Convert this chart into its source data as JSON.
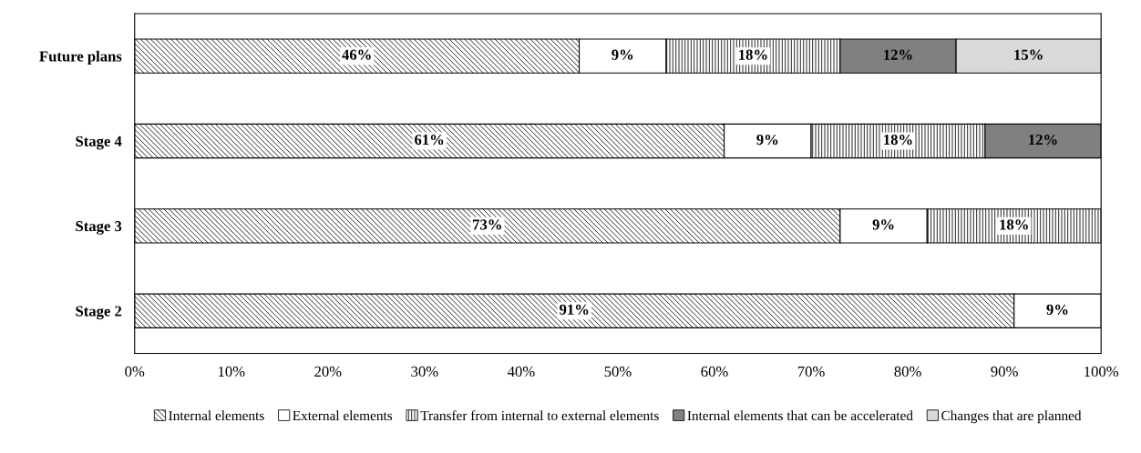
{
  "chart_data": {
    "type": "bar",
    "orientation": "horizontal",
    "stacked": true,
    "categories": [
      "Future plans",
      "Stage 4",
      "Stage 3",
      "Stage 2"
    ],
    "series": [
      {
        "name": "Internal elements",
        "color": "#000000",
        "values": [
          46,
          61,
          73,
          91
        ],
        "value_labels": [
          "46%",
          "61%",
          "73%",
          "91%"
        ]
      },
      {
        "name": "External elements",
        "color": "#ffffff",
        "values": [
          9,
          9,
          9,
          9
        ],
        "value_labels": [
          "9%",
          "9%",
          "9%",
          "9%"
        ]
      },
      {
        "name": "Transfer from internal to external elements",
        "color": "#000000",
        "values": [
          18,
          18,
          18,
          null
        ],
        "value_labels": [
          "18%",
          "18%",
          "18%",
          null
        ]
      },
      {
        "name": "Internal elements that can be accelerated",
        "color": "#808080",
        "values": [
          12,
          12,
          null,
          null
        ],
        "value_labels": [
          "12%",
          "12%",
          null,
          null
        ]
      },
      {
        "name": "Changes that are planned",
        "color": "#d9d9d9",
        "values": [
          15,
          null,
          null,
          null
        ],
        "value_labels": [
          "15%",
          null,
          null,
          null
        ]
      }
    ],
    "xlim": [
      0,
      100
    ],
    "xticks": [
      {
        "value": 0,
        "label": "0%"
      },
      {
        "value": 10,
        "label": "10%"
      },
      {
        "value": 20,
        "label": "20%"
      },
      {
        "value": 30,
        "label": "30%"
      },
      {
        "value": 40,
        "label": "40%"
      },
      {
        "value": 50,
        "label": "50%"
      },
      {
        "value": 60,
        "label": "60%"
      },
      {
        "value": 70,
        "label": "70%"
      },
      {
        "value": 80,
        "label": "80%"
      },
      {
        "value": 90,
        "label": "90%"
      },
      {
        "value": 100,
        "label": "100%"
      }
    ],
    "grid": false,
    "legend": "bottom"
  }
}
